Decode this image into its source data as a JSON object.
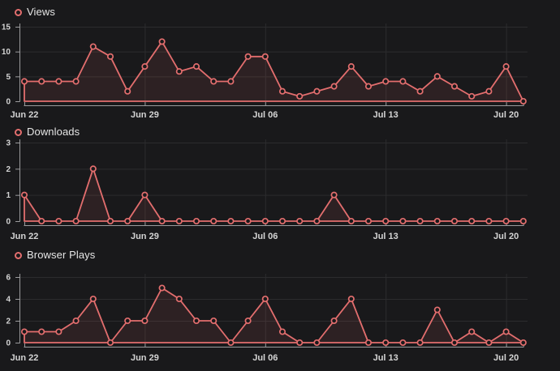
{
  "theme": {
    "background": "#19191b",
    "accent": "#e36e6e",
    "area_fill": "rgba(227,110,110,0.10)",
    "grid_color": "#2c2c2e",
    "axis_color": "#9b9b9d",
    "tick_label_color": "#d4d4d4",
    "legend_text_color": "#e6e6e6",
    "marker_fill": "#19191b"
  },
  "chart_data": [
    {
      "type": "area",
      "legend": "Views",
      "dates": [
        "Jun 22",
        "Jun 23",
        "Jun 24",
        "Jun 25",
        "Jun 26",
        "Jun 27",
        "Jun 28",
        "Jun 29",
        "Jun 30",
        "Jul 01",
        "Jul 02",
        "Jul 03",
        "Jul 04",
        "Jul 05",
        "Jul 06",
        "Jul 07",
        "Jul 08",
        "Jul 09",
        "Jul 10",
        "Jul 11",
        "Jul 12",
        "Jul 13",
        "Jul 14",
        "Jul 15",
        "Jul 16",
        "Jul 17",
        "Jul 18",
        "Jul 19",
        "Jul 20",
        "Jul 21"
      ],
      "values": [
        4,
        4,
        4,
        4,
        11,
        9,
        2,
        7,
        12,
        6,
        7,
        4,
        4,
        9,
        9,
        2,
        1,
        2,
        3,
        7,
        3,
        4,
        4,
        2,
        5,
        3,
        1,
        2,
        7,
        0
      ],
      "ylim": [
        0,
        15
      ],
      "yticks": [
        0,
        5,
        10,
        15
      ],
      "x_tick_labels": [
        "Jun 22",
        "Jun 29",
        "Jul 06",
        "Jul 13",
        "Jul 20"
      ],
      "x_tick_indices": [
        0,
        7,
        14,
        21,
        28
      ],
      "grid": true,
      "legend_position": "top-left"
    },
    {
      "type": "area",
      "legend": "Downloads",
      "dates": [
        "Jun 22",
        "Jun 23",
        "Jun 24",
        "Jun 25",
        "Jun 26",
        "Jun 27",
        "Jun 28",
        "Jun 29",
        "Jun 30",
        "Jul 01",
        "Jul 02",
        "Jul 03",
        "Jul 04",
        "Jul 05",
        "Jul 06",
        "Jul 07",
        "Jul 08",
        "Jul 09",
        "Jul 10",
        "Jul 11",
        "Jul 12",
        "Jul 13",
        "Jul 14",
        "Jul 15",
        "Jul 16",
        "Jul 17",
        "Jul 18",
        "Jul 19",
        "Jul 20",
        "Jul 21"
      ],
      "values": [
        1,
        0,
        0,
        0,
        2,
        0,
        0,
        1,
        0,
        0,
        0,
        0,
        0,
        0,
        0,
        0,
        0,
        0,
        1,
        0,
        0,
        0,
        0,
        0,
        0,
        0,
        0,
        0,
        0,
        0
      ],
      "ylim": [
        0,
        3
      ],
      "yticks": [
        0,
        1,
        2,
        3
      ],
      "x_tick_labels": [
        "Jun 22",
        "Jun 29",
        "Jul 06",
        "Jul 13",
        "Jul 20"
      ],
      "x_tick_indices": [
        0,
        7,
        14,
        21,
        28
      ],
      "grid": true,
      "legend_position": "top-left"
    },
    {
      "type": "area",
      "legend": "Browser Plays",
      "dates": [
        "Jun 22",
        "Jun 23",
        "Jun 24",
        "Jun 25",
        "Jun 26",
        "Jun 27",
        "Jun 28",
        "Jun 29",
        "Jun 30",
        "Jul 01",
        "Jul 02",
        "Jul 03",
        "Jul 04",
        "Jul 05",
        "Jul 06",
        "Jul 07",
        "Jul 08",
        "Jul 09",
        "Jul 10",
        "Jul 11",
        "Jul 12",
        "Jul 13",
        "Jul 14",
        "Jul 15",
        "Jul 16",
        "Jul 17",
        "Jul 18",
        "Jul 19",
        "Jul 20",
        "Jul 21"
      ],
      "values": [
        1,
        1,
        1,
        2,
        4,
        0,
        2,
        2,
        5,
        4,
        2,
        2,
        0,
        2,
        4,
        1,
        0,
        0,
        2,
        4,
        0,
        0,
        0,
        0,
        3,
        0,
        1,
        0,
        1,
        0
      ],
      "ylim": [
        0,
        6
      ],
      "yticks": [
        0,
        2,
        4,
        6
      ],
      "x_tick_labels": [
        "Jun 22",
        "Jun 29",
        "Jul 06",
        "Jul 13",
        "Jul 20"
      ],
      "x_tick_indices": [
        0,
        7,
        14,
        21,
        28
      ],
      "grid": true,
      "legend_position": "top-left"
    }
  ]
}
